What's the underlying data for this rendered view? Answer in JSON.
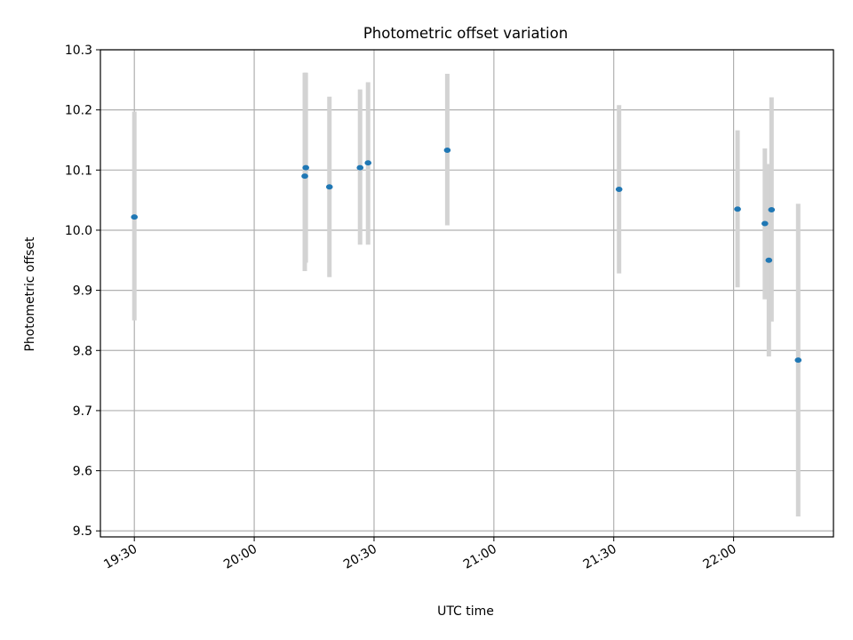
{
  "chart_data": {
    "type": "scatter",
    "title": "Photometric offset variation",
    "xlabel": "UTC time",
    "ylabel": "Photometric offset",
    "x_ticks": [
      "19:30",
      "20:00",
      "20:30",
      "21:00",
      "21:30",
      "22:00"
    ],
    "y_ticks": [
      "9.5",
      "9.6",
      "9.7",
      "9.8",
      "9.9",
      "10.0",
      "10.1",
      "10.2",
      "10.3"
    ],
    "xlim": [
      "19:21:30",
      "22:25:00"
    ],
    "ylim": [
      9.49,
      10.3
    ],
    "grid": true,
    "marker_color": "#1f77b4",
    "errorbar_color": "#d3d3d3",
    "points": [
      {
        "x": "19:30:00",
        "y": 10.022,
        "low": 9.85,
        "high": 10.197
      },
      {
        "x": "20:12:40",
        "y": 10.09,
        "low": 9.932,
        "high": 10.262
      },
      {
        "x": "20:12:55",
        "y": 10.104,
        "low": 9.946,
        "high": 10.262
      },
      {
        "x": "20:18:50",
        "y": 10.072,
        "low": 9.922,
        "high": 10.222
      },
      {
        "x": "20:26:30",
        "y": 10.104,
        "low": 9.976,
        "high": 10.234
      },
      {
        "x": "20:28:30",
        "y": 10.112,
        "low": 9.976,
        "high": 10.246
      },
      {
        "x": "20:48:20",
        "y": 10.133,
        "low": 10.008,
        "high": 10.26
      },
      {
        "x": "21:31:20",
        "y": 10.068,
        "low": 9.928,
        "high": 10.208
      },
      {
        "x": "22:01:00",
        "y": 10.035,
        "low": 9.905,
        "high": 10.166
      },
      {
        "x": "22:07:50",
        "y": 10.011,
        "low": 9.885,
        "high": 10.136
      },
      {
        "x": "22:08:50",
        "y": 9.95,
        "low": 9.79,
        "high": 10.11
      },
      {
        "x": "22:09:30",
        "y": 10.034,
        "low": 9.848,
        "high": 10.221
      },
      {
        "x": "22:16:10",
        "y": 9.784,
        "low": 9.524,
        "high": 10.044
      }
    ]
  }
}
